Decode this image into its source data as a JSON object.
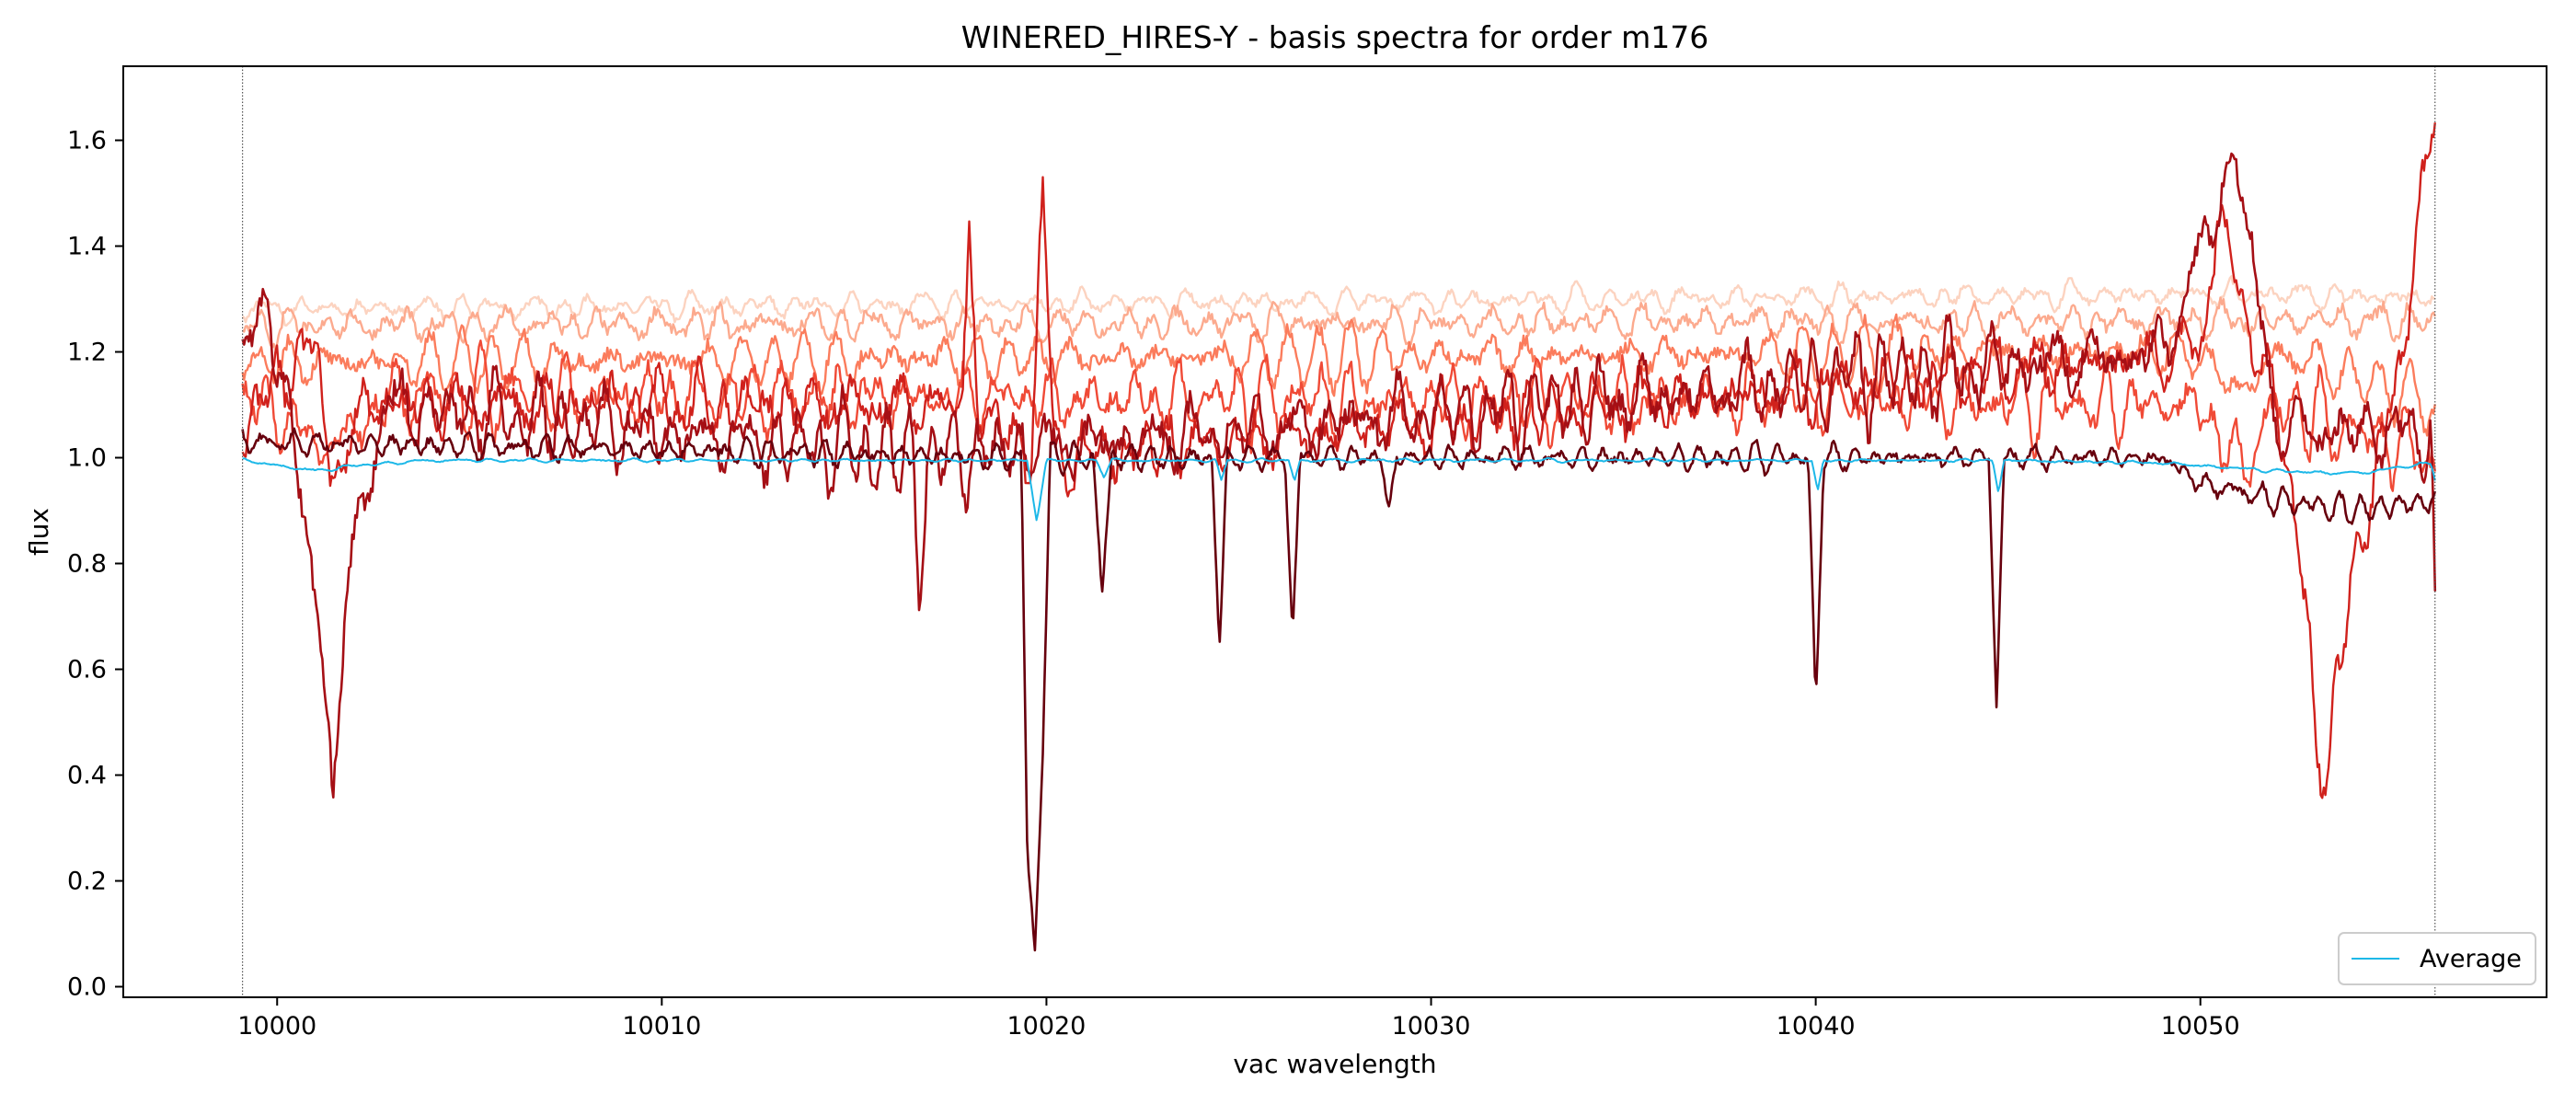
{
  "chart_data": {
    "type": "line",
    "title": "WINERED_HIRES-Y - basis spectra for order m176",
    "xlabel": "vac wavelength",
    "ylabel": "flux",
    "xlim": [
      9996.0,
      10059.0
    ],
    "ylim": [
      -0.02,
      1.74
    ],
    "xticks": [
      10000,
      10010,
      10020,
      10030,
      10040,
      10050
    ],
    "xtick_labels": [
      "10000",
      "10010",
      "10020",
      "10030",
      "10040",
      "10050"
    ],
    "yticks": [
      0.0,
      0.2,
      0.4,
      0.6,
      0.8,
      1.0,
      1.2,
      1.4,
      1.6
    ],
    "ytick_labels": [
      "0.0",
      "0.2",
      "0.4",
      "0.6",
      "0.8",
      "1.0",
      "1.2",
      "1.4",
      "1.6"
    ],
    "grid": false,
    "legend": {
      "position": "lower-right",
      "entries": [
        "Average"
      ]
    },
    "vlines": [
      9999.1,
      10056.1
    ],
    "noise_seed": 7,
    "series": [
      {
        "color": "#fcd3c0",
        "linewidth": 2.4,
        "baseline": 1.31,
        "noise": 0.022,
        "points": [
          [
            9999.1,
            1.28
          ],
          [
            10052,
            1.31
          ],
          [
            10056.1,
            1.3
          ]
        ]
      },
      {
        "color": "#fcaa8e",
        "linewidth": 2.4,
        "baseline": 1.27,
        "noise": 0.035,
        "points": [
          [
            9999.1,
            1.25
          ],
          [
            10056.1,
            1.26
          ]
        ]
      },
      {
        "color": "#fb7c5c",
        "linewidth": 2.4,
        "baseline": 1.21,
        "noise": 0.045,
        "points": [
          [
            9999.1,
            1.18
          ],
          [
            10050,
            1.2
          ],
          [
            10051,
            1.12
          ],
          [
            10052,
            1.2
          ],
          [
            10056.1,
            1.1
          ]
        ]
      },
      {
        "color": "#f04a36",
        "linewidth": 2.4,
        "baseline": 1.15,
        "noise": 0.06,
        "points": [
          [
            9999.1,
            1.12
          ],
          [
            10001.3,
            1.02
          ],
          [
            10002,
            1.05
          ],
          [
            10003,
            1.12
          ],
          [
            10050,
            1.1
          ],
          [
            10051,
            0.98
          ],
          [
            10052,
            1.1
          ],
          [
            10056.1,
            1.0
          ]
        ]
      },
      {
        "color": "#d0211c",
        "linewidth": 2.4,
        "baseline": 1.12,
        "noise": 0.07,
        "points": [
          [
            9999.1,
            1.04
          ],
          [
            10000,
            1.16
          ],
          [
            10001,
            1.2
          ],
          [
            10001.7,
            0.9
          ],
          [
            10002,
            1.1
          ],
          [
            10017.8,
            1.1
          ],
          [
            10018,
            1.42
          ],
          [
            10018.2,
            1.1
          ],
          [
            10019.6,
            1.0
          ],
          [
            10019.9,
            1.52
          ],
          [
            10020.2,
            1.0
          ],
          [
            10050,
            1.2
          ],
          [
            10050.5,
            1.48
          ],
          [
            10051,
            1.3
          ],
          [
            10052,
            1.1
          ],
          [
            10052.8,
            0.7
          ],
          [
            10053,
            0.48
          ],
          [
            10053.3,
            0.38
          ],
          [
            10053.6,
            0.6
          ],
          [
            10054,
            0.8
          ],
          [
            10055,
            1.1
          ],
          [
            10056.1,
            1.66
          ]
        ]
      },
      {
        "color": "#a50f15",
        "linewidth": 2.6,
        "baseline": 1.09,
        "noise": 0.07,
        "points": [
          [
            9999.1,
            1.2
          ],
          [
            9999.8,
            1.3
          ],
          [
            10000.2,
            1.12
          ],
          [
            10000.7,
            0.88
          ],
          [
            10001.1,
            0.72
          ],
          [
            10001.45,
            0.33
          ],
          [
            10001.8,
            0.76
          ],
          [
            10002.2,
            0.9
          ],
          [
            10002.8,
            1.1
          ],
          [
            10016.5,
            1.0
          ],
          [
            10016.7,
            0.76
          ],
          [
            10016.9,
            1.0
          ],
          [
            10049,
            1.2
          ],
          [
            10050,
            1.38
          ],
          [
            10050.9,
            1.58
          ],
          [
            10051.5,
            1.3
          ],
          [
            10052,
            1.05
          ],
          [
            10056,
            1.05
          ],
          [
            10056.1,
            0.68
          ]
        ]
      },
      {
        "color": "#67000d",
        "linewidth": 2.6,
        "baseline": 1.01,
        "noise": 0.022,
        "points": [
          [
            9999.1,
            1.03
          ],
          [
            10019.35,
            1.0
          ],
          [
            10019.5,
            0.26
          ],
          [
            10019.7,
            0.06
          ],
          [
            10019.9,
            0.45
          ],
          [
            10020.1,
            1.0
          ],
          [
            10021.2,
            1.0
          ],
          [
            10021.45,
            0.75
          ],
          [
            10021.7,
            1.0
          ],
          [
            10024.3,
            1.0
          ],
          [
            10024.5,
            0.64
          ],
          [
            10024.7,
            1.0
          ],
          [
            10026.2,
            1.0
          ],
          [
            10026.4,
            0.67
          ],
          [
            10026.6,
            1.0
          ],
          [
            10028.7,
            1.0
          ],
          [
            10028.9,
            0.9
          ],
          [
            10029.1,
            1.0
          ],
          [
            10039.8,
            1.0
          ],
          [
            10040.0,
            0.52
          ],
          [
            10040.2,
            1.0
          ],
          [
            10044.5,
            1.0
          ],
          [
            10044.7,
            0.53
          ],
          [
            10044.9,
            1.0
          ],
          [
            10049,
            1.0
          ],
          [
            10050,
            0.95
          ],
          [
            10052,
            0.92
          ],
          [
            10054,
            0.9
          ],
          [
            10056.1,
            0.92
          ]
        ]
      },
      {
        "name": "Average",
        "color": "#1db8e8",
        "linewidth": 2.0,
        "baseline": 0.995,
        "noise": 0.003,
        "points": [
          [
            9999.1,
            0.995
          ],
          [
            10001,
            0.975
          ],
          [
            10002,
            0.985
          ],
          [
            10004,
            0.995
          ],
          [
            10019.5,
            0.995
          ],
          [
            10019.75,
            0.88
          ],
          [
            10020,
            0.995
          ],
          [
            10021.3,
            0.995
          ],
          [
            10021.5,
            0.965
          ],
          [
            10021.7,
            0.995
          ],
          [
            10024.4,
            0.995
          ],
          [
            10024.55,
            0.955
          ],
          [
            10024.7,
            0.995
          ],
          [
            10026.3,
            0.995
          ],
          [
            10026.45,
            0.955
          ],
          [
            10026.6,
            0.995
          ],
          [
            10039.9,
            0.995
          ],
          [
            10040.05,
            0.935
          ],
          [
            10040.2,
            0.995
          ],
          [
            10044.6,
            0.995
          ],
          [
            10044.75,
            0.935
          ],
          [
            10044.9,
            0.995
          ],
          [
            10049,
            0.99
          ],
          [
            10052,
            0.975
          ],
          [
            10054,
            0.97
          ],
          [
            10056,
            0.99
          ],
          [
            10056.1,
            0.96
          ]
        ]
      }
    ]
  }
}
